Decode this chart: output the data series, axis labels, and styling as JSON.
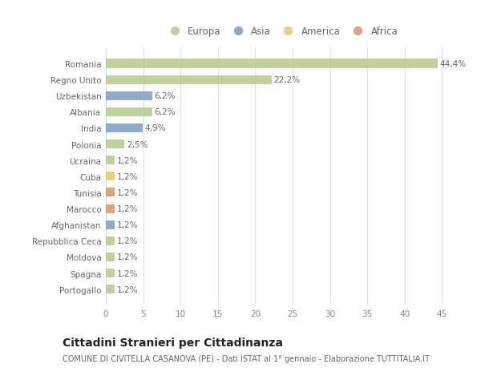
{
  "countries": [
    "Romania",
    "Regno Unito",
    "Uzbekistan",
    "Albania",
    "India",
    "Polonia",
    "Ucraina",
    "Cuba",
    "Tunisia",
    "Marocco",
    "Afghanistan",
    "Repubblica Ceca",
    "Moldova",
    "Spagna",
    "Portogallo"
  ],
  "values": [
    44.4,
    22.2,
    6.2,
    6.2,
    4.9,
    2.5,
    1.2,
    1.2,
    1.2,
    1.2,
    1.2,
    1.2,
    1.2,
    1.2,
    1.2
  ],
  "labels": [
    "44,4%",
    "22,2%",
    "6,2%",
    "6,2%",
    "4,9%",
    "2,5%",
    "1,2%",
    "1,2%",
    "1,2%",
    "1,2%",
    "1,2%",
    "1,2%",
    "1,2%",
    "1,2%",
    "1,2%"
  ],
  "continents": [
    "Europa",
    "Europa",
    "Asia",
    "Europa",
    "Asia",
    "Europa",
    "Europa",
    "America",
    "Africa",
    "Africa",
    "Asia",
    "Europa",
    "Europa",
    "Europa",
    "Europa"
  ],
  "continent_colors": {
    "Europa": "#b5c98e",
    "Asia": "#7b9dc0",
    "America": "#e8c86a",
    "Africa": "#d4956a"
  },
  "legend_order": [
    "Europa",
    "Asia",
    "America",
    "Africa"
  ],
  "title": "Cittadini Stranieri per Cittadinanza",
  "subtitle": "COMUNE DI CIVITELLA CASANOVA (PE) - Dati ISTAT al 1° gennaio - Elaborazione TUTTITALIA.IT",
  "xlim": [
    0,
    47
  ],
  "xticks": [
    0,
    5,
    10,
    15,
    20,
    25,
    30,
    35,
    40,
    45
  ],
  "background_color": "#ffffff",
  "grid_color": "#e0e0e0",
  "bar_height": 0.55,
  "label_fontsize": 7.5,
  "tick_fontsize": 7.5,
  "title_fontsize": 10,
  "subtitle_fontsize": 7
}
